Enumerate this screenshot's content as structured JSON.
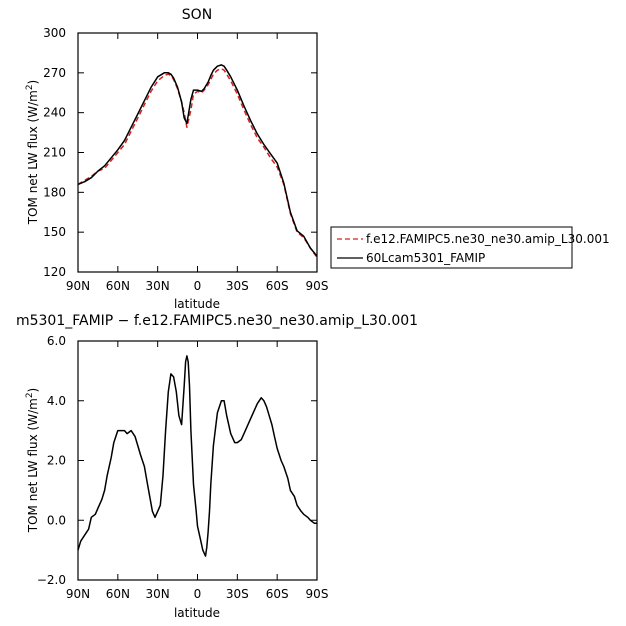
{
  "chart_data": [
    {
      "type": "line",
      "title": "SON",
      "xlabel": "latitude",
      "ylabel": "TOM net LW flux (W/m",
      "ylabel_superscript": "2",
      "ylabel_suffix": ")",
      "xlim": [
        90,
        -90
      ],
      "ylim": [
        120,
        300
      ],
      "xticks": [
        90,
        60,
        30,
        0,
        -30,
        -60,
        -90
      ],
      "xtick_labels": [
        "90N",
        "60N",
        "30N",
        "0",
        "30S",
        "60S",
        "90S"
      ],
      "yticks": [
        120,
        150,
        180,
        210,
        240,
        270,
        300
      ],
      "ytick_labels": [
        "120",
        "150",
        "180",
        "210",
        "240",
        "270",
        "300"
      ],
      "legend_position": "right",
      "series": [
        {
          "name": "f.e12.FAMIPC5.ne30_ne30.amip_L30.001",
          "color": "#d42020",
          "dash": "dashed",
          "x": [
            90,
            85,
            80,
            75,
            70,
            65,
            60,
            55,
            50,
            45,
            40,
            35,
            30,
            25,
            22,
            20,
            18,
            15,
            12,
            10,
            8,
            5,
            3,
            0,
            -3,
            -5,
            -8,
            -10,
            -12,
            -15,
            -18,
            -20,
            -22,
            -25,
            -30,
            -35,
            -40,
            -45,
            -50,
            -55,
            -60,
            -65,
            -70,
            -75,
            -80,
            -85,
            -90
          ],
          "y": [
            186,
            189,
            192,
            196,
            198,
            204,
            210,
            216,
            226,
            236,
            246,
            256,
            264,
            268,
            269,
            268,
            265,
            258,
            248,
            240,
            229,
            242,
            254,
            256,
            255,
            257,
            261,
            265,
            269,
            272,
            273,
            272,
            269,
            264,
            254,
            242,
            231,
            221,
            214,
            206,
            199,
            186,
            164,
            150,
            146,
            138,
            131
          ]
        },
        {
          "name": "60Lcam5301_FAMIP",
          "color": "#000000",
          "dash": "solid",
          "x": [
            90,
            85,
            80,
            75,
            70,
            65,
            60,
            55,
            50,
            45,
            40,
            35,
            30,
            25,
            22,
            20,
            18,
            15,
            12,
            10,
            8,
            5,
            3,
            0,
            -3,
            -5,
            -8,
            -10,
            -12,
            -15,
            -18,
            -20,
            -22,
            -25,
            -30,
            -35,
            -40,
            -45,
            -50,
            -55,
            -60,
            -65,
            -70,
            -75,
            -80,
            -85,
            -90
          ],
          "y": [
            186,
            188,
            191,
            196,
            200,
            206,
            212,
            219,
            229,
            239,
            249,
            259,
            267,
            270,
            270,
            269,
            266,
            259,
            248,
            236,
            232,
            250,
            257,
            257,
            256,
            258,
            263,
            268,
            272,
            275,
            276,
            275,
            272,
            267,
            257,
            245,
            234,
            224,
            216,
            209,
            202,
            187,
            165,
            151,
            147,
            138,
            132
          ]
        }
      ]
    },
    {
      "type": "line",
      "title": "m5301_FAMIP − f.e12.FAMIPC5.ne30_ne30.amip_L30.001",
      "xlabel": "latitude",
      "ylabel": "TOM net LW flux (W/m",
      "ylabel_superscript": "2",
      "ylabel_suffix": ")",
      "xlim": [
        90,
        -90
      ],
      "ylim": [
        -2.0,
        6.0
      ],
      "xticks": [
        90,
        60,
        30,
        0,
        -30,
        -60,
        -90
      ],
      "xtick_labels": [
        "90N",
        "60N",
        "30N",
        "0",
        "30S",
        "60S",
        "90S"
      ],
      "yticks": [
        -2.0,
        0.0,
        2.0,
        4.0,
        6.0
      ],
      "ytick_labels": [
        "−2.0",
        "0.0",
        "2.0",
        "4.0",
        "6.0"
      ],
      "series": [
        {
          "color": "#000000",
          "dash": "solid",
          "x": [
            90,
            88,
            85,
            82,
            80,
            77,
            75,
            72,
            70,
            68,
            65,
            63,
            60,
            57,
            55,
            53,
            50,
            47,
            45,
            43,
            40,
            38,
            36,
            34,
            32,
            30,
            28,
            26,
            24,
            22,
            20,
            18,
            16,
            14,
            12,
            10,
            9,
            8,
            7,
            6,
            5,
            3,
            1,
            0,
            -2,
            -4,
            -6,
            -7,
            -8,
            -9,
            -10,
            -12,
            -15,
            -18,
            -20,
            -22,
            -25,
            -28,
            -30,
            -33,
            -35,
            -38,
            -40,
            -45,
            -48,
            -50,
            -52,
            -54,
            -56,
            -58,
            -60,
            -63,
            -65,
            -68,
            -70,
            -73,
            -75,
            -78,
            -80,
            -83,
            -85,
            -88,
            -90
          ],
          "y": [
            -1.0,
            -0.7,
            -0.5,
            -0.3,
            0.1,
            0.2,
            0.4,
            0.7,
            1.0,
            1.5,
            2.1,
            2.6,
            3.0,
            3.0,
            3.0,
            2.9,
            3.0,
            2.8,
            2.5,
            2.2,
            1.8,
            1.3,
            0.8,
            0.3,
            0.1,
            0.3,
            0.5,
            1.5,
            3.0,
            4.3,
            4.9,
            4.8,
            4.3,
            3.5,
            3.2,
            4.5,
            5.3,
            5.5,
            5.3,
            4.5,
            3.0,
            1.2,
            0.3,
            -0.2,
            -0.6,
            -1.0,
            -1.2,
            -0.9,
            -0.4,
            0.3,
            1.2,
            2.5,
            3.6,
            4.0,
            4.0,
            3.5,
            2.9,
            2.6,
            2.6,
            2.7,
            2.9,
            3.2,
            3.4,
            3.9,
            4.1,
            4.0,
            3.8,
            3.5,
            3.2,
            2.8,
            2.4,
            2.0,
            1.8,
            1.4,
            1.0,
            0.8,
            0.5,
            0.3,
            0.2,
            0.1,
            0.0,
            -0.1,
            -0.1
          ]
        }
      ]
    }
  ]
}
